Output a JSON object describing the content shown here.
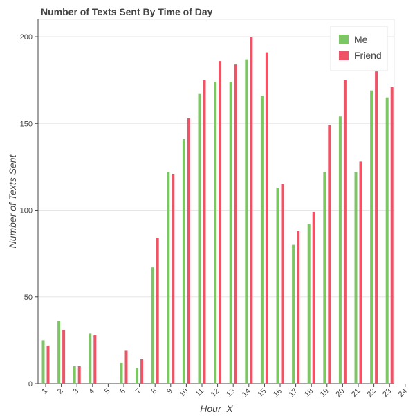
{
  "chart_data": {
    "type": "bar",
    "title": "Number of Texts Sent By Time of Day",
    "xlabel": "Hour_X",
    "ylabel": "Number of Texts Sent",
    "ylim": [
      0,
      210
    ],
    "yticks": [
      0,
      50,
      100,
      150,
      200
    ],
    "categories": [
      "1",
      "2",
      "3",
      "4",
      "5",
      "6",
      "7",
      "8",
      "9",
      "10",
      "11",
      "12",
      "13",
      "14",
      "15",
      "16",
      "17",
      "18",
      "19",
      "20",
      "21",
      "22",
      "23",
      "24"
    ],
    "series": [
      {
        "name": "Me",
        "color": "#7cc664",
        "values": [
          25,
          36,
          10,
          29,
          0,
          12,
          9,
          67,
          122,
          141,
          167,
          174,
          174,
          187,
          166,
          113,
          80,
          92,
          122,
          154,
          122,
          169,
          165,
          0
        ]
      },
      {
        "name": "Friend",
        "color": "#ef5466",
        "values": [
          22,
          31,
          10,
          28,
          0,
          19,
          14,
          84,
          121,
          153,
          175,
          186,
          184,
          200,
          191,
          115,
          88,
          99,
          149,
          175,
          128,
          180,
          171,
          0
        ]
      }
    ],
    "grid": true,
    "legend_position": "top-right"
  }
}
